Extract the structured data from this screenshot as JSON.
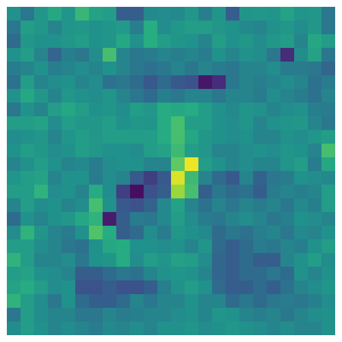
{
  "chart_data": {
    "type": "heatmap",
    "title": "",
    "xlabel": "",
    "ylabel": "",
    "grid": false,
    "legend": "none",
    "colormap": "viridis",
    "value_range": [
      0,
      1
    ],
    "rows": 24,
    "cols": 24,
    "values": [
      [
        0.5,
        0.4,
        0.53,
        0.6,
        0.52,
        0.67,
        0.58,
        0.55,
        0.3,
        0.3,
        0.47,
        0.48,
        0.47,
        0.53,
        0.43,
        0.52,
        0.3,
        0.52,
        0.53,
        0.52,
        0.58,
        0.52,
        0.53,
        0.4
      ],
      [
        0.4,
        0.55,
        0.53,
        0.45,
        0.52,
        0.53,
        0.5,
        0.52,
        0.54,
        0.43,
        0.63,
        0.48,
        0.53,
        0.55,
        0.55,
        0.53,
        0.5,
        0.47,
        0.45,
        0.5,
        0.53,
        0.48,
        0.53,
        0.4
      ],
      [
        0.35,
        0.53,
        0.5,
        0.5,
        0.53,
        0.55,
        0.5,
        0.52,
        0.6,
        0.5,
        0.63,
        0.55,
        0.52,
        0.5,
        0.45,
        0.55,
        0.5,
        0.53,
        0.48,
        0.53,
        0.55,
        0.45,
        0.6,
        0.55
      ],
      [
        0.5,
        0.55,
        0.45,
        0.33,
        0.43,
        0.4,
        0.48,
        0.7,
        0.45,
        0.4,
        0.42,
        0.45,
        0.43,
        0.45,
        0.42,
        0.5,
        0.45,
        0.5,
        0.48,
        0.4,
        0.15,
        0.48,
        0.58,
        0.4
      ],
      [
        0.42,
        0.45,
        0.5,
        0.43,
        0.45,
        0.48,
        0.45,
        0.5,
        0.45,
        0.4,
        0.38,
        0.4,
        0.45,
        0.4,
        0.45,
        0.42,
        0.4,
        0.45,
        0.45,
        0.48,
        0.42,
        0.42,
        0.4,
        0.33
      ],
      [
        0.38,
        0.55,
        0.45,
        0.48,
        0.5,
        0.45,
        0.48,
        0.38,
        0.4,
        0.35,
        0.28,
        0.35,
        0.28,
        0.25,
        0.08,
        0.15,
        0.4,
        0.45,
        0.43,
        0.45,
        0.48,
        0.45,
        0.38,
        0.42
      ],
      [
        0.5,
        0.6,
        0.53,
        0.45,
        0.53,
        0.5,
        0.48,
        0.52,
        0.45,
        0.4,
        0.35,
        0.43,
        0.4,
        0.45,
        0.45,
        0.4,
        0.45,
        0.45,
        0.42,
        0.48,
        0.45,
        0.42,
        0.38,
        0.45
      ],
      [
        0.4,
        0.5,
        0.45,
        0.55,
        0.6,
        0.55,
        0.5,
        0.52,
        0.48,
        0.55,
        0.53,
        0.62,
        0.6,
        0.62,
        0.55,
        0.5,
        0.47,
        0.52,
        0.5,
        0.45,
        0.48,
        0.5,
        0.43,
        0.42
      ],
      [
        0.55,
        0.55,
        0.58,
        0.48,
        0.55,
        0.53,
        0.53,
        0.55,
        0.5,
        0.53,
        0.52,
        0.62,
        0.7,
        0.55,
        0.55,
        0.5,
        0.48,
        0.52,
        0.45,
        0.5,
        0.52,
        0.53,
        0.45,
        0.4
      ],
      [
        0.48,
        0.5,
        0.53,
        0.45,
        0.52,
        0.55,
        0.53,
        0.55,
        0.55,
        0.55,
        0.55,
        0.62,
        0.7,
        0.6,
        0.53,
        0.5,
        0.48,
        0.5,
        0.45,
        0.45,
        0.5,
        0.48,
        0.52,
        0.55
      ],
      [
        0.5,
        0.55,
        0.53,
        0.48,
        0.5,
        0.55,
        0.53,
        0.5,
        0.5,
        0.48,
        0.55,
        0.58,
        0.68,
        0.55,
        0.53,
        0.45,
        0.45,
        0.48,
        0.5,
        0.48,
        0.52,
        0.5,
        0.45,
        0.7
      ],
      [
        0.45,
        0.5,
        0.55,
        0.5,
        0.45,
        0.47,
        0.42,
        0.48,
        0.5,
        0.5,
        0.45,
        0.45,
        0.75,
        0.98,
        0.55,
        0.5,
        0.45,
        0.48,
        0.45,
        0.45,
        0.52,
        0.55,
        0.42,
        0.6
      ],
      [
        0.52,
        0.55,
        0.58,
        0.45,
        0.5,
        0.5,
        0.42,
        0.48,
        0.45,
        0.28,
        0.2,
        0.28,
        0.95,
        0.68,
        0.45,
        0.35,
        0.28,
        0.45,
        0.32,
        0.4,
        0.42,
        0.5,
        0.48,
        0.47
      ],
      [
        0.55,
        0.55,
        0.65,
        0.48,
        0.5,
        0.45,
        0.62,
        0.48,
        0.2,
        0.05,
        0.25,
        0.3,
        0.85,
        0.7,
        0.3,
        0.4,
        0.35,
        0.38,
        0.3,
        0.42,
        0.45,
        0.43,
        0.45,
        0.55
      ],
      [
        0.45,
        0.55,
        0.48,
        0.5,
        0.45,
        0.48,
        0.7,
        0.5,
        0.28,
        0.25,
        0.32,
        0.47,
        0.58,
        0.45,
        0.38,
        0.45,
        0.4,
        0.45,
        0.42,
        0.45,
        0.4,
        0.47,
        0.43,
        0.55
      ],
      [
        0.35,
        0.5,
        0.45,
        0.5,
        0.53,
        0.6,
        0.65,
        0.1,
        0.3,
        0.42,
        0.4,
        0.47,
        0.55,
        0.48,
        0.42,
        0.4,
        0.45,
        0.48,
        0.45,
        0.4,
        0.43,
        0.5,
        0.48,
        0.45
      ],
      [
        0.48,
        0.65,
        0.52,
        0.45,
        0.42,
        0.5,
        0.72,
        0.62,
        0.3,
        0.35,
        0.48,
        0.42,
        0.53,
        0.5,
        0.47,
        0.35,
        0.4,
        0.38,
        0.43,
        0.45,
        0.4,
        0.47,
        0.45,
        0.5
      ],
      [
        0.55,
        0.55,
        0.48,
        0.45,
        0.4,
        0.38,
        0.5,
        0.6,
        0.62,
        0.5,
        0.5,
        0.48,
        0.5,
        0.45,
        0.52,
        0.35,
        0.3,
        0.35,
        0.42,
        0.4,
        0.45,
        0.43,
        0.5,
        0.55
      ],
      [
        0.65,
        0.55,
        0.45,
        0.45,
        0.48,
        0.4,
        0.5,
        0.52,
        0.62,
        0.48,
        0.55,
        0.52,
        0.57,
        0.55,
        0.48,
        0.33,
        0.3,
        0.35,
        0.3,
        0.3,
        0.45,
        0.5,
        0.55,
        0.48
      ],
      [
        0.55,
        0.58,
        0.5,
        0.48,
        0.45,
        0.3,
        0.3,
        0.35,
        0.4,
        0.38,
        0.45,
        0.5,
        0.52,
        0.5,
        0.45,
        0.33,
        0.3,
        0.35,
        0.35,
        0.4,
        0.35,
        0.5,
        0.45,
        0.5
      ],
      [
        0.58,
        0.62,
        0.55,
        0.48,
        0.5,
        0.25,
        0.25,
        0.3,
        0.25,
        0.25,
        0.3,
        0.43,
        0.5,
        0.55,
        0.5,
        0.35,
        0.3,
        0.3,
        0.35,
        0.3,
        0.38,
        0.45,
        0.48,
        0.52
      ],
      [
        0.65,
        0.55,
        0.48,
        0.4,
        0.5,
        0.35,
        0.3,
        0.3,
        0.35,
        0.45,
        0.4,
        0.45,
        0.45,
        0.5,
        0.45,
        0.45,
        0.35,
        0.4,
        0.35,
        0.4,
        0.42,
        0.4,
        0.43,
        0.48
      ],
      [
        0.4,
        0.55,
        0.48,
        0.45,
        0.45,
        0.4,
        0.4,
        0.45,
        0.42,
        0.43,
        0.45,
        0.45,
        0.48,
        0.5,
        0.45,
        0.52,
        0.5,
        0.45,
        0.43,
        0.45,
        0.4,
        0.45,
        0.48,
        0.5
      ],
      [
        0.48,
        0.55,
        0.5,
        0.45,
        0.48,
        0.45,
        0.42,
        0.47,
        0.45,
        0.48,
        0.45,
        0.5,
        0.5,
        0.52,
        0.48,
        0.5,
        0.53,
        0.5,
        0.48,
        0.45,
        0.48,
        0.45,
        0.45,
        0.5
      ]
    ]
  }
}
